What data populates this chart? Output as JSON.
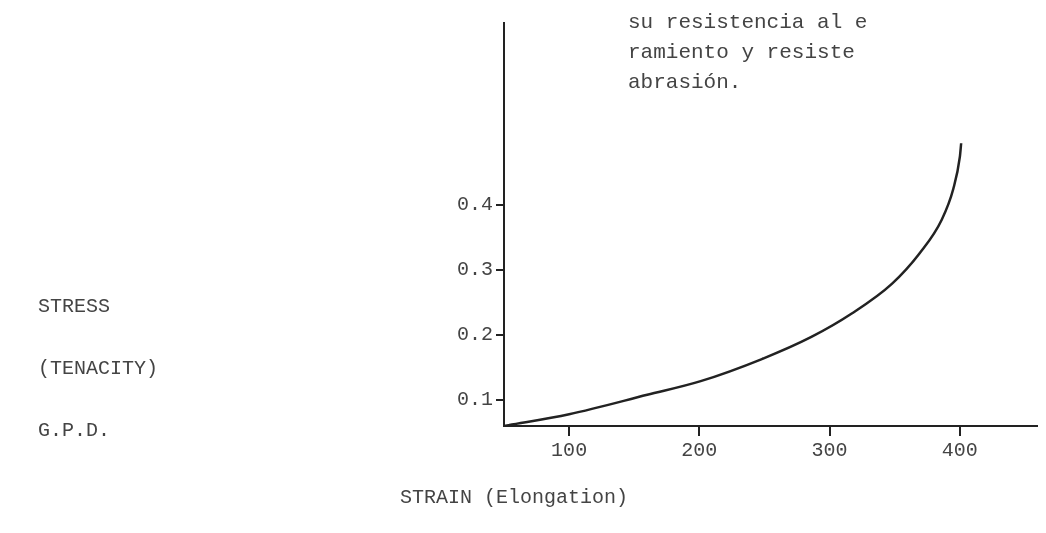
{
  "chart_data": {
    "type": "line",
    "xlabel": "STRAIN (Elongation)",
    "ylabel": "STRESS\n(TENACITY)\nG.P.D.",
    "annotations": [
      "su resistencia al e",
      "ramiento y resiste",
      "abrasión."
    ],
    "x": [
      50,
      100,
      160,
      201,
      248,
      286,
      317,
      348,
      370,
      386,
      395,
      400,
      401
    ],
    "values": [
      0.06,
      0.078,
      0.108,
      0.129,
      0.163,
      0.197,
      0.233,
      0.279,
      0.328,
      0.377,
      0.425,
      0.474,
      0.495
    ],
    "color": "#222222",
    "marker": "none",
    "xlim": [
      50,
      460
    ],
    "xticks": [
      100,
      200,
      300,
      400
    ],
    "ylim": [
      0.06,
      0.68
    ],
    "yticks": [
      0.1,
      0.2,
      0.3,
      0.4
    ]
  }
}
